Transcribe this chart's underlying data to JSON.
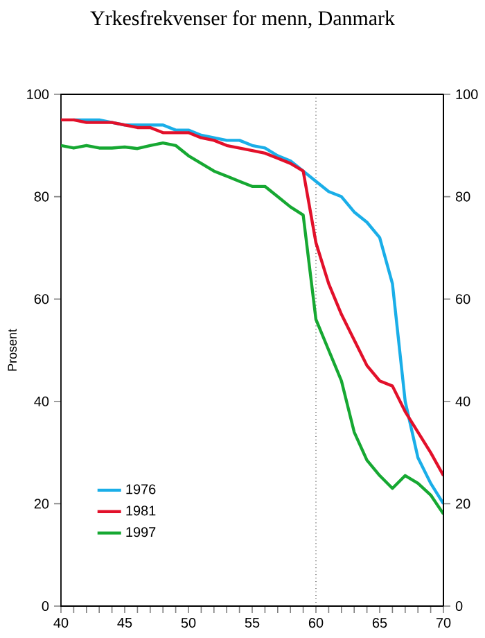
{
  "chart_data": {
    "type": "line",
    "title": "Yrkesfrekvenser for menn, Danmark",
    "ylabel": "Prosent",
    "x": [
      40,
      41,
      42,
      43,
      44,
      45,
      46,
      47,
      48,
      49,
      50,
      51,
      52,
      53,
      54,
      55,
      56,
      57,
      58,
      59,
      60,
      61,
      62,
      63,
      64,
      65,
      66,
      67,
      68,
      69,
      70
    ],
    "series": [
      {
        "name": "1976",
        "color": "#1aaee8",
        "values": [
          null,
          95,
          95,
          95,
          94.5,
          94,
          94,
          94,
          94,
          93,
          93,
          92,
          91.5,
          91,
          91,
          90,
          89.5,
          88,
          87,
          85,
          83,
          81,
          80,
          77,
          75,
          72,
          63,
          40,
          29,
          24,
          20
        ]
      },
      {
        "name": "1981",
        "color": "#e2102a",
        "values": [
          95,
          95,
          94.5,
          94.5,
          94.5,
          94,
          93.5,
          93.5,
          92.5,
          92.5,
          92.5,
          91.5,
          91,
          90,
          89.5,
          89,
          88.5,
          87.5,
          86.5,
          85,
          71,
          63,
          57,
          52,
          47,
          44,
          43,
          38,
          34,
          30,
          25.5
        ]
      },
      {
        "name": "1997",
        "color": "#16a832",
        "values": [
          90,
          89.5,
          90,
          89.5,
          89.5,
          89.7,
          89.4,
          90,
          90.5,
          90,
          88,
          86.5,
          85,
          84,
          83,
          82,
          82,
          80,
          78,
          76.4,
          56,
          50,
          44,
          34,
          28.5,
          25.5,
          23,
          25.5,
          24,
          21.7,
          18
        ]
      }
    ],
    "xlim": [
      40,
      70
    ],
    "xticks": [
      40,
      {
        "value": 41,
        "label": null
      },
      {
        "value": 42,
        "label": null
      },
      {
        "value": 43,
        "label": null
      },
      {
        "value": 44,
        "label": null
      },
      45,
      {
        "value": 46,
        "label": null
      },
      {
        "value": 47,
        "label": null
      },
      {
        "value": 48,
        "label": null
      },
      {
        "value": 49,
        "label": null
      },
      50,
      {
        "value": 51,
        "label": null
      },
      {
        "value": 52,
        "label": null
      },
      {
        "value": 53,
        "label": null
      },
      {
        "value": 54,
        "label": null
      },
      55,
      {
        "value": 56,
        "label": null
      },
      {
        "value": 57,
        "label": null
      },
      {
        "value": 58,
        "label": null
      },
      {
        "value": 59,
        "label": null
      },
      60,
      {
        "value": 61,
        "label": null
      },
      {
        "value": 62,
        "label": null
      },
      {
        "value": 63,
        "label": null
      },
      {
        "value": 64,
        "label": null
      },
      65,
      {
        "value": 66,
        "label": null
      },
      {
        "value": 67,
        "label": null
      },
      {
        "value": 68,
        "label": null
      },
      {
        "value": 69,
        "label": null
      },
      70
    ],
    "ylim": [
      0,
      100
    ],
    "yticks": [
      0,
      20,
      40,
      60,
      80,
      100
    ],
    "y2lim": [
      0,
      100
    ],
    "y2ticks": [
      0,
      20,
      40,
      60,
      80,
      100
    ],
    "ref_lines": [
      {
        "axis": "x",
        "value": 60,
        "color": "#000000",
        "line_style": "dotted"
      }
    ],
    "legend": "bottom left",
    "grid": false,
    "marker": "none",
    "line_style": "solid"
  }
}
